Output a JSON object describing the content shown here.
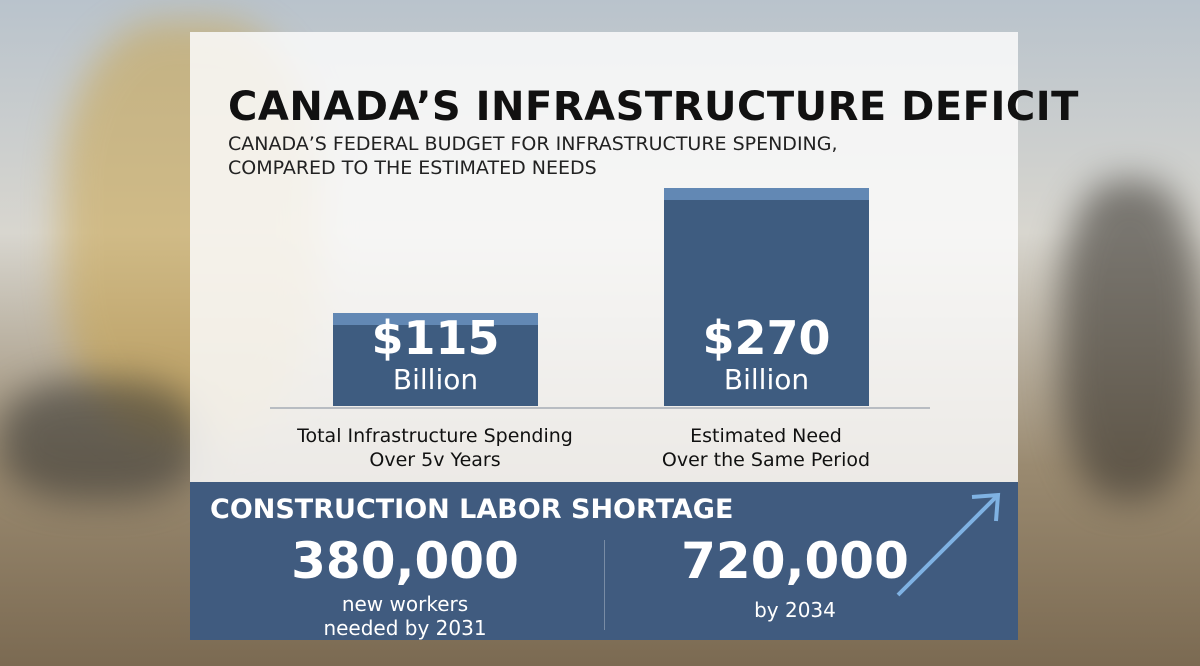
{
  "chart_data": {
    "type": "bar",
    "title": "CANADA’S INFRASTRUCTURE DEFICIT",
    "subtitle": "CANADA’S FEDERAL BUDGET FOR INFRASTRUCTURE SPENDING,\nCOMPARED TO THE ESTIMATED NEEDS",
    "categories": [
      "Total Infrastructure Spending\nOver 5v Years",
      "Estimated Need\nOver the Same Period"
    ],
    "values": [
      115,
      270
    ],
    "value_labels": [
      "$115",
      "$270"
    ],
    "value_units": [
      "Billion",
      "Billion"
    ],
    "color": "#3e5c80"
  },
  "labor_shortage": {
    "title": "CONSTRUCTION LABOR SHORTAGE",
    "stats": [
      {
        "value": "380,000",
        "text": "new workers\nneeded by 2031"
      },
      {
        "value": "720,000",
        "text": "by 2034"
      }
    ]
  }
}
